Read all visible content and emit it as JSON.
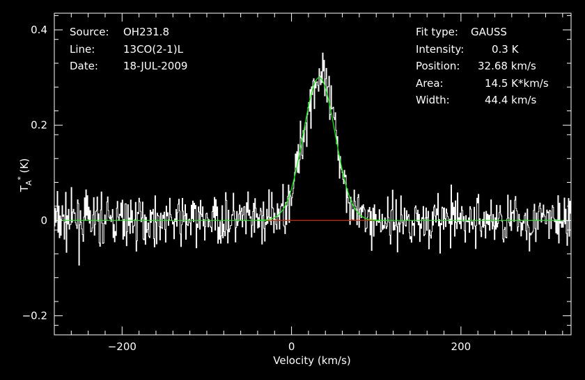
{
  "info_left": [
    {
      "key": "Source:",
      "value": "OH231.8"
    },
    {
      "key": "Line:",
      "value": "13CO(2-1)L"
    },
    {
      "key": "Date:",
      "value": "18-JUL-2009"
    }
  ],
  "info_right": [
    {
      "key": "Fit type:",
      "value": "GAUSS"
    },
    {
      "key": "Intensity:",
      "value": "0.3 K"
    },
    {
      "key": "Position:",
      "value": "32.68 km/s"
    },
    {
      "key": "Area:",
      "value": "14.5 K*km/s"
    },
    {
      "key": "Width:",
      "value": "44.4 km/s"
    }
  ],
  "chart_data": {
    "type": "line",
    "xlabel": "Velocity (km/s)",
    "ylabel": "T_A* (K)",
    "xlim": [
      -280,
      330
    ],
    "ylim": [
      -0.24,
      0.435
    ],
    "xticks": [
      -200,
      0,
      200
    ],
    "xtick_labels": [
      "−200",
      "0",
      "200"
    ],
    "yticks": [
      -0.2,
      0,
      0.2,
      0.4
    ],
    "ytick_labels": [
      "−0.2",
      "0",
      "0.2",
      "0.4"
    ],
    "grid": false,
    "colors": {
      "background": "#000000",
      "frame": "#ffffff",
      "spectrum": "#ffffff",
      "fit": "#00ff00",
      "baseline_window": "#ff0000"
    },
    "gaussian_fit": {
      "amplitude": 0.3,
      "center": 32.68,
      "fwhm": 44.4
    },
    "baseline_window_range": [
      -30,
      100
    ],
    "spectrum_envelope": {
      "noise_rms": 0.045,
      "n_channels": 740
    }
  }
}
